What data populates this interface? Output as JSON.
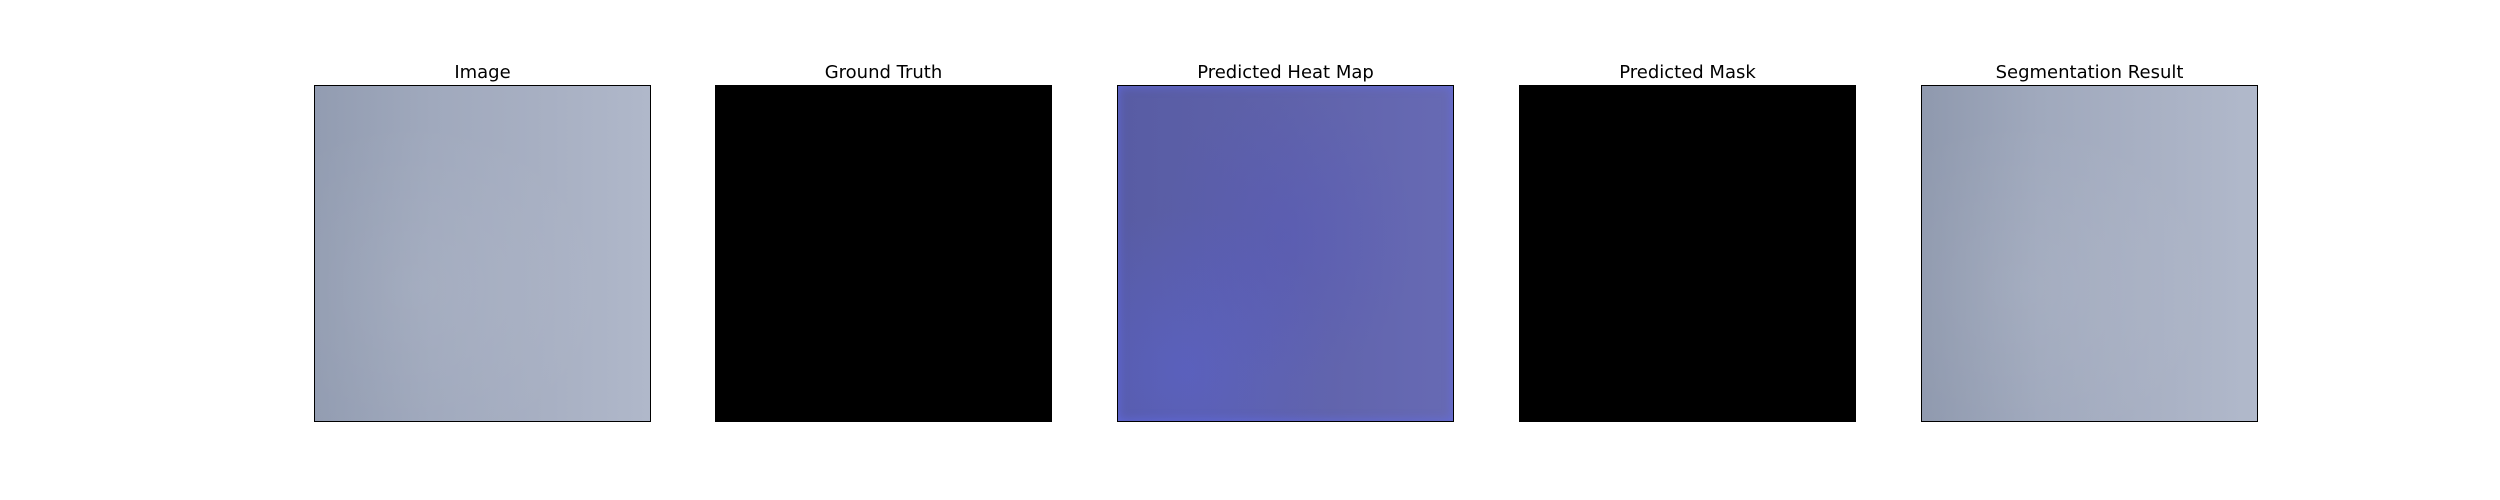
{
  "panels": [
    {
      "title": "Image"
    },
    {
      "title": "Ground Truth"
    },
    {
      "title": "Predicted Heat Map"
    },
    {
      "title": "Predicted Mask"
    },
    {
      "title": "Segmentation Result"
    }
  ],
  "colors": {
    "image_tone": "#a0a9bd",
    "ground_truth": "#000000",
    "heat_map_tone": "#5f62aa",
    "predicted_mask": "#000000",
    "segmentation_tone": "#a0a9bd"
  }
}
